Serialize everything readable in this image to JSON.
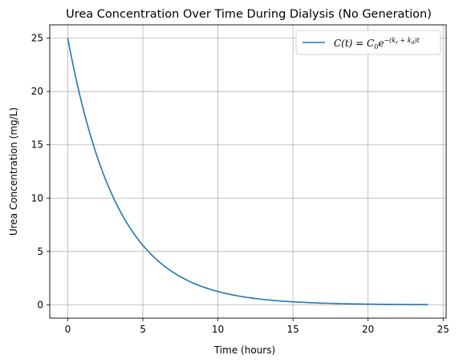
{
  "chart_data": {
    "type": "line",
    "title": "Urea Concentration Over Time During Dialysis (No Generation)",
    "xlabel": "Time (hours)",
    "ylabel": "Urea Concentration (mg/L)",
    "xlim": [
      -1.2,
      25.2
    ],
    "ylim": [
      -1.25,
      26.25
    ],
    "xticks": [
      0,
      5,
      10,
      15,
      20,
      25
    ],
    "yticks": [
      0,
      5,
      10,
      15,
      20,
      25
    ],
    "grid": true,
    "legend_position": "top-right",
    "series": [
      {
        "name": "C(t) = C0 e^-(kr+kd)t",
        "color": "#1f77b4",
        "model": {
          "form": "exponential_decay",
          "C0": 25,
          "k": 0.3,
          "t_start": 0,
          "t_end": 24
        }
      }
    ],
    "legend": {
      "lhs": "C(t) = C",
      "sub0": "0",
      "e": "e",
      "exp": "−(k",
      "sub_r": "r",
      "plus": " + k",
      "sub_d": "d",
      "exp_end": ")t"
    }
  }
}
